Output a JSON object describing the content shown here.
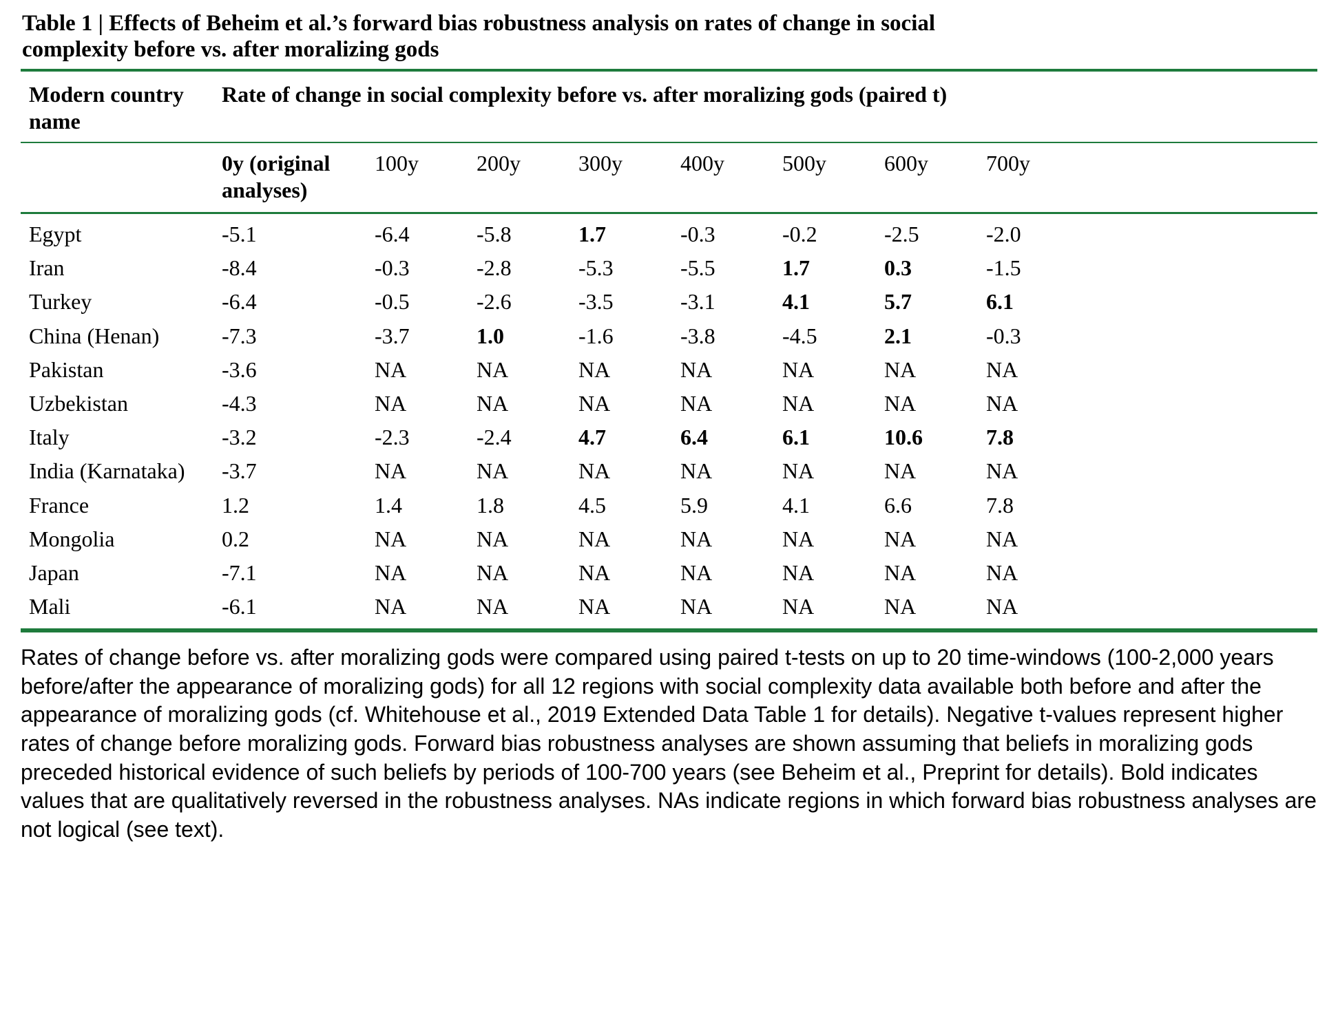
{
  "title": "Table 1 | Effects of Beheim et al.’s forward bias robustness analysis on rates of change in social complexity before vs. after moralizing gods",
  "table": {
    "col1_header": "Modern country name",
    "span_header": "Rate of change in social complexity before vs. after moralizing gods (paired t)",
    "sub_headers": [
      "0y (original analyses)",
      "100y",
      "200y",
      "300y",
      "400y",
      "500y",
      "600y",
      "700y"
    ],
    "rows": [
      {
        "country": "Egypt",
        "values": [
          "-5.1",
          "-6.4",
          "-5.8",
          "1.7",
          "-0.3",
          "-0.2",
          "-2.5",
          "-2.0"
        ],
        "bold": [
          3
        ]
      },
      {
        "country": "Iran",
        "values": [
          "-8.4",
          "-0.3",
          "-2.8",
          "-5.3",
          "-5.5",
          "1.7",
          "0.3",
          "-1.5"
        ],
        "bold": [
          5,
          6
        ]
      },
      {
        "country": "Turkey",
        "values": [
          "-6.4",
          "-0.5",
          "-2.6",
          "-3.5",
          "-3.1",
          "4.1",
          "5.7",
          "6.1"
        ],
        "bold": [
          5,
          6,
          7
        ]
      },
      {
        "country": "China (Henan)",
        "values": [
          "-7.3",
          "-3.7",
          "1.0",
          "-1.6",
          "-3.8",
          "-4.5",
          "2.1",
          "-0.3"
        ],
        "bold": [
          2,
          6
        ]
      },
      {
        "country": "Pakistan",
        "values": [
          "-3.6",
          "NA",
          "NA",
          "NA",
          "NA",
          "NA",
          "NA",
          "NA"
        ],
        "bold": []
      },
      {
        "country": "Uzbekistan",
        "values": [
          "-4.3",
          "NA",
          "NA",
          "NA",
          "NA",
          "NA",
          "NA",
          "NA"
        ],
        "bold": []
      },
      {
        "country": "Italy",
        "values": [
          "-3.2",
          "-2.3",
          "-2.4",
          "4.7",
          "6.4",
          "6.1",
          "10.6",
          "7.8"
        ],
        "bold": [
          3,
          4,
          5,
          6,
          7
        ]
      },
      {
        "country": "India (Karnataka)",
        "values": [
          "-3.7",
          "NA",
          "NA",
          "NA",
          "NA",
          "NA",
          "NA",
          "NA"
        ],
        "bold": []
      },
      {
        "country": "France",
        "values": [
          "1.2",
          "1.4",
          "1.8",
          "4.5",
          "5.9",
          "4.1",
          "6.6",
          "7.8"
        ],
        "bold": []
      },
      {
        "country": "Mongolia",
        "values": [
          "0.2",
          "NA",
          "NA",
          "NA",
          "NA",
          "NA",
          "NA",
          "NA"
        ],
        "bold": []
      },
      {
        "country": "Japan",
        "values": [
          "-7.1",
          "NA",
          "NA",
          "NA",
          "NA",
          "NA",
          "NA",
          "NA"
        ],
        "bold": []
      },
      {
        "country": "Mali",
        "values": [
          "-6.1",
          "NA",
          "NA",
          "NA",
          "NA",
          "NA",
          "NA",
          "NA"
        ],
        "bold": []
      }
    ]
  },
  "footnote": "Rates of change before vs. after moralizing gods were compared using paired t-tests on up to 20 time-windows (100-2,000 years before/after the appearance of moralizing gods) for all 12 regions with social complexity data available both before and after the appearance of moralizing gods (cf. Whitehouse et al., 2019 Extended Data Table 1 for details). Negative t-values represent higher rates of change before moralizing gods. Forward bias robustness analyses are shown assuming that beliefs in moralizing gods preceded historical evidence of such beliefs by periods of 100-700 years (see Beheim et al., Preprint for details). Bold indicates values that are qualitatively reversed in the robustness analyses. NAs indicate regions in which forward bias robustness analyses are not logical (see text).",
  "colors": {
    "line_green": "#1e7b3c"
  }
}
